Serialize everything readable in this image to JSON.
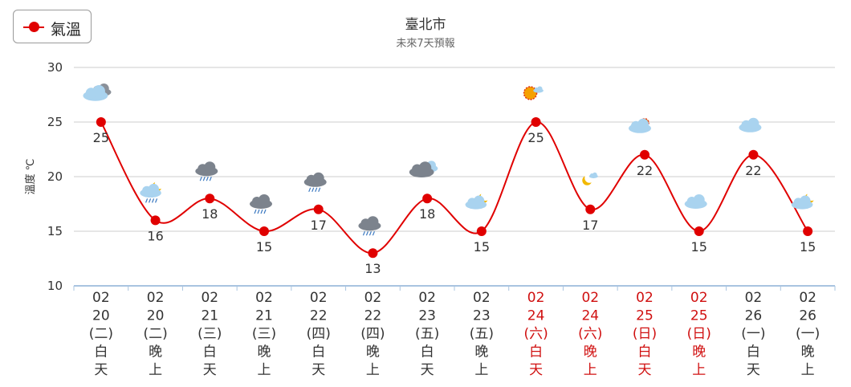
{
  "chart_data": {
    "type": "line",
    "title": "臺北市",
    "subtitle": "未來7天預報",
    "ylabel": "溫度 ℃",
    "ylim": [
      10,
      30
    ],
    "yticks": [
      10,
      15,
      20,
      25,
      30
    ],
    "grid": true,
    "legend": {
      "position": "top-left",
      "entries": [
        {
          "name": "氣溫"
        }
      ]
    },
    "series": [
      {
        "name": "氣溫",
        "color": "#e00000",
        "values": [
          25,
          16,
          18,
          15,
          17,
          13,
          18,
          15,
          25,
          17,
          22,
          15,
          22,
          15
        ]
      }
    ],
    "categories": [
      {
        "lines": [
          "02",
          "20",
          "(二)",
          "白",
          "天"
        ],
        "holiday": false,
        "icon": "partly-cloudy-icon"
      },
      {
        "lines": [
          "02",
          "20",
          "(二)",
          "晚",
          "上"
        ],
        "holiday": false,
        "icon": "night-cloudy-rain-icon"
      },
      {
        "lines": [
          "02",
          "21",
          "(三)",
          "白",
          "天"
        ],
        "holiday": false,
        "icon": "rain-cloud-icon"
      },
      {
        "lines": [
          "02",
          "21",
          "(三)",
          "晚",
          "上"
        ],
        "holiday": false,
        "icon": "rain-cloud-icon"
      },
      {
        "lines": [
          "02",
          "22",
          "(四)",
          "白",
          "天"
        ],
        "holiday": false,
        "icon": "rain-cloud-icon"
      },
      {
        "lines": [
          "02",
          "22",
          "(四)",
          "晚",
          "上"
        ],
        "holiday": false,
        "icon": "rain-cloud-icon"
      },
      {
        "lines": [
          "02",
          "23",
          "(五)",
          "白",
          "天"
        ],
        "holiday": false,
        "icon": "cloudy-icon"
      },
      {
        "lines": [
          "02",
          "23",
          "(五)",
          "晚",
          "上"
        ],
        "holiday": false,
        "icon": "night-cloudy-icon"
      },
      {
        "lines": [
          "02",
          "24",
          "(六)",
          "白",
          "天"
        ],
        "holiday": true,
        "icon": "sunny-icon"
      },
      {
        "lines": [
          "02",
          "24",
          "(六)",
          "晚",
          "上"
        ],
        "holiday": true,
        "icon": "moon-icon"
      },
      {
        "lines": [
          "02",
          "25",
          "(日)",
          "白",
          "天"
        ],
        "holiday": true,
        "icon": "sun-cloud-icon"
      },
      {
        "lines": [
          "02",
          "25",
          "(日)",
          "晚",
          "上"
        ],
        "holiday": true,
        "icon": "cloud-icon"
      },
      {
        "lines": [
          "02",
          "26",
          "(一)",
          "白",
          "天"
        ],
        "holiday": false,
        "icon": "cloud-icon"
      },
      {
        "lines": [
          "02",
          "26",
          "(一)",
          "晚",
          "上"
        ],
        "holiday": false,
        "icon": "night-cloudy-icon"
      }
    ],
    "colors": {
      "line": "#e00000",
      "holiday_text": "#d01010",
      "normal_text": "#333333",
      "grid": "#cccccc"
    }
  }
}
